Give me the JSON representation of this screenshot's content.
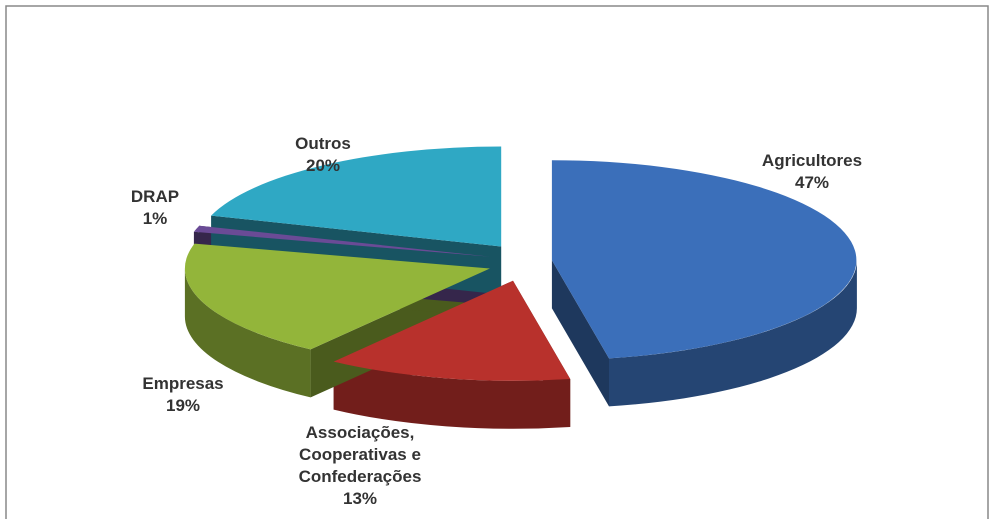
{
  "chart_data": {
    "type": "pie",
    "categories": [
      "Agricultores",
      "Associações, Cooperativas e Confederações",
      "Empresas",
      "DRAP",
      "Outros"
    ],
    "values": [
      47,
      13,
      19,
      1,
      20
    ],
    "value_labels": [
      "47%",
      "13%",
      "19%",
      "1%",
      "20%"
    ],
    "colors": [
      "#3b6fba",
      "#b8312c",
      "#93b53a",
      "#6a4b96",
      "#2fa8c4"
    ]
  }
}
